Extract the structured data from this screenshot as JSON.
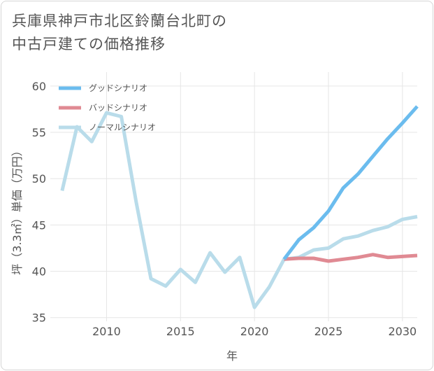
{
  "title_lines": [
    "兵庫県神戸市北区鈴蘭台北町の",
    "中古戸建ての価格推移"
  ],
  "chart_data": {
    "type": "line",
    "xlabel": "年",
    "ylabel": "坪（3.3㎡）単価（万円）",
    "xlim": [
      2006.2,
      2031
    ],
    "ylim": [
      34.6,
      61.5
    ],
    "xticks": [
      2010,
      2015,
      2020,
      2025,
      2030
    ],
    "yticks": [
      35,
      40,
      45,
      50,
      55,
      60
    ],
    "grid": true,
    "legend_position": "top-left",
    "series": [
      {
        "name": "グッドシナリオ",
        "color": "#6bbcee",
        "x": [
          2022,
          2023,
          2024,
          2025,
          2026,
          2027,
          2028,
          2029,
          2030,
          2031
        ],
        "y": [
          41.3,
          43.4,
          44.7,
          46.5,
          49.0,
          50.5,
          52.4,
          54.3,
          56.0,
          57.8
        ]
      },
      {
        "name": "バッドシナリオ",
        "color": "#e08a93",
        "x": [
          2022,
          2023,
          2024,
          2025,
          2026,
          2027,
          2028,
          2029,
          2030,
          2031
        ],
        "y": [
          41.3,
          41.4,
          41.4,
          41.1,
          41.3,
          41.5,
          41.8,
          41.5,
          41.6,
          41.7
        ]
      },
      {
        "name": "ノーマルシナリオ",
        "color": "#b9dcea",
        "x": [
          2007,
          2008,
          2009,
          2010,
          2011,
          2012,
          2013,
          2014,
          2015,
          2016,
          2017,
          2018,
          2019,
          2020,
          2021,
          2022,
          2023,
          2024,
          2025,
          2026,
          2027,
          2028,
          2029,
          2030,
          2031
        ],
        "y": [
          48.7,
          55.6,
          54.0,
          57.1,
          56.7,
          47.5,
          39.2,
          38.4,
          40.2,
          38.8,
          42.0,
          39.9,
          41.5,
          36.1,
          38.3,
          41.3,
          41.5,
          42.3,
          42.5,
          43.5,
          43.8,
          44.4,
          44.8,
          45.6,
          45.9
        ]
      }
    ]
  }
}
